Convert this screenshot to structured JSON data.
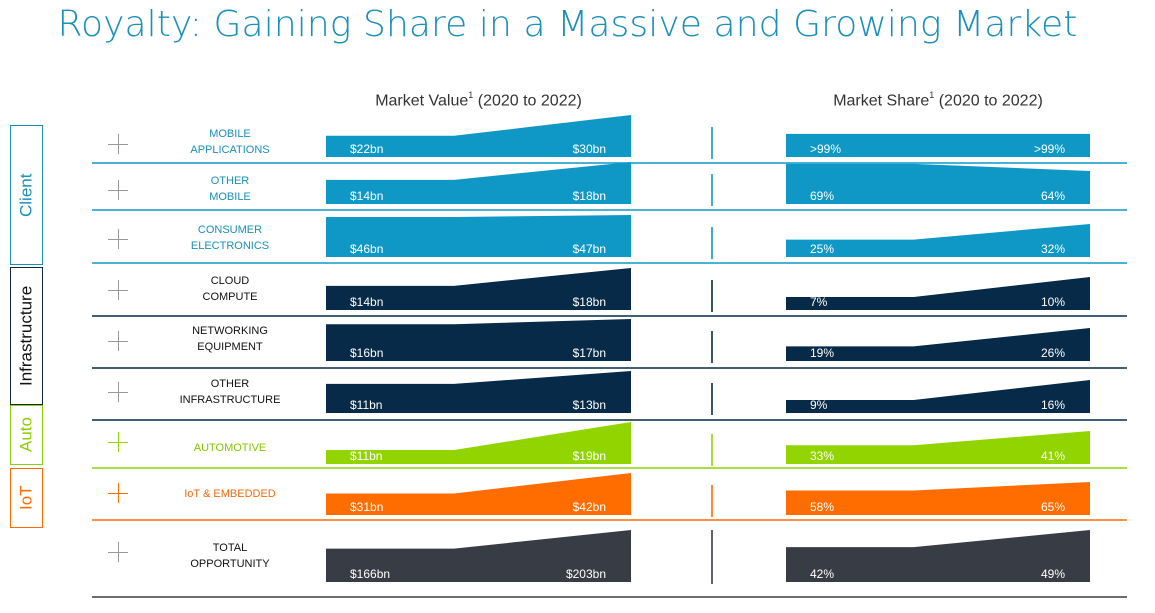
{
  "title": "Royalty: Gaining Share in a Massive and Growing Market",
  "headers": {
    "market_value": "Market Value",
    "market_share": "Market Share",
    "footnote_mark": "1",
    "period": "(2020 to 2022)"
  },
  "segments": [
    {
      "name": "Client",
      "color": "#1a8fb8"
    },
    {
      "name": "Infrastructure",
      "color": "#0c2a44"
    },
    {
      "name": "Auto",
      "color": "#8fce00"
    },
    {
      "name": "IoT",
      "color": "#ff6b00"
    }
  ],
  "colors": {
    "client": "#0f98c6",
    "infrastructure": "#062a47",
    "auto": "#92d400",
    "iot": "#ff6d00",
    "total": "#383c44",
    "client_text": "#1a8fb8",
    "infrastructure_text": "#111111",
    "auto_text": "#86c400",
    "iot_text": "#f26b10",
    "total_text": "#111111"
  },
  "rows": [
    {
      "label1": "MOBILE",
      "label2": "APPLICATIONS",
      "segment": "client"
    },
    {
      "label1": "OTHER",
      "label2": "MOBILE",
      "segment": "client"
    },
    {
      "label1": "CONSUMER",
      "label2": "ELECTRONICS",
      "segment": "client"
    },
    {
      "label1": "CLOUD",
      "label2": "COMPUTE",
      "segment": "infrastructure"
    },
    {
      "label1": "NETWORKING",
      "label2": "EQUIPMENT",
      "segment": "infrastructure"
    },
    {
      "label1": "OTHER",
      "label2": "INFRASTRUCTURE",
      "segment": "infrastructure"
    },
    {
      "label1": "AUTOMOTIVE",
      "label2": "",
      "segment": "auto"
    },
    {
      "label1": "IoT & EMBEDDED",
      "label2": "",
      "segment": "iot"
    },
    {
      "label1": "TOTAL",
      "label2": "OPPORTUNITY",
      "segment": "total"
    }
  ],
  "chart_data": [
    {
      "type": "area",
      "title": "Market Value (2020 to 2022)",
      "x": [
        "2020",
        "2022"
      ],
      "categories": [
        "MOBILE APPLICATIONS",
        "OTHER MOBILE",
        "CONSUMER ELECTRONICS",
        "CLOUD COMPUTE",
        "NETWORKING EQUIPMENT",
        "OTHER INFRASTRUCTURE",
        "AUTOMOTIVE",
        "IoT & EMBEDDED",
        "TOTAL OPPORTUNITY"
      ],
      "unit": "$bn",
      "values_2020": [
        22,
        14,
        46,
        14,
        16,
        11,
        11,
        31,
        166
      ],
      "values_2022": [
        30,
        18,
        47,
        18,
        17,
        13,
        19,
        42,
        203
      ],
      "labels_2020": [
        "$22bn",
        "$14bn",
        "$46bn",
        "$14bn",
        "$16bn",
        "$11bn",
        "$11bn",
        "$31bn",
        "$166bn"
      ],
      "labels_2022": [
        "$30bn",
        "$18bn",
        "$47bn",
        "$18bn",
        "$17bn",
        "$13bn",
        "$19bn",
        "$42bn",
        "$203bn"
      ]
    },
    {
      "type": "area",
      "title": "Market Share (2020 to 2022)",
      "x": [
        "2020",
        "2022"
      ],
      "categories": [
        "MOBILE APPLICATIONS",
        "OTHER MOBILE",
        "CONSUMER ELECTRONICS",
        "CLOUD COMPUTE",
        "NETWORKING EQUIPMENT",
        "OTHER INFRASTRUCTURE",
        "AUTOMOTIVE",
        "IoT & EMBEDDED",
        "TOTAL OPPORTUNITY"
      ],
      "unit": "%",
      "values_2020": [
        99,
        69,
        25,
        7,
        19,
        9,
        33,
        58,
        42
      ],
      "values_2022": [
        99,
        64,
        32,
        10,
        26,
        16,
        41,
        65,
        49
      ],
      "labels_2020": [
        ">99%",
        "69%",
        "25%",
        "7%",
        "19%",
        "9%",
        "33%",
        "58%",
        "42%"
      ],
      "labels_2022": [
        ">99%",
        "64%",
        "32%",
        "10%",
        "26%",
        "16%",
        "41%",
        "65%",
        "49%"
      ]
    }
  ]
}
